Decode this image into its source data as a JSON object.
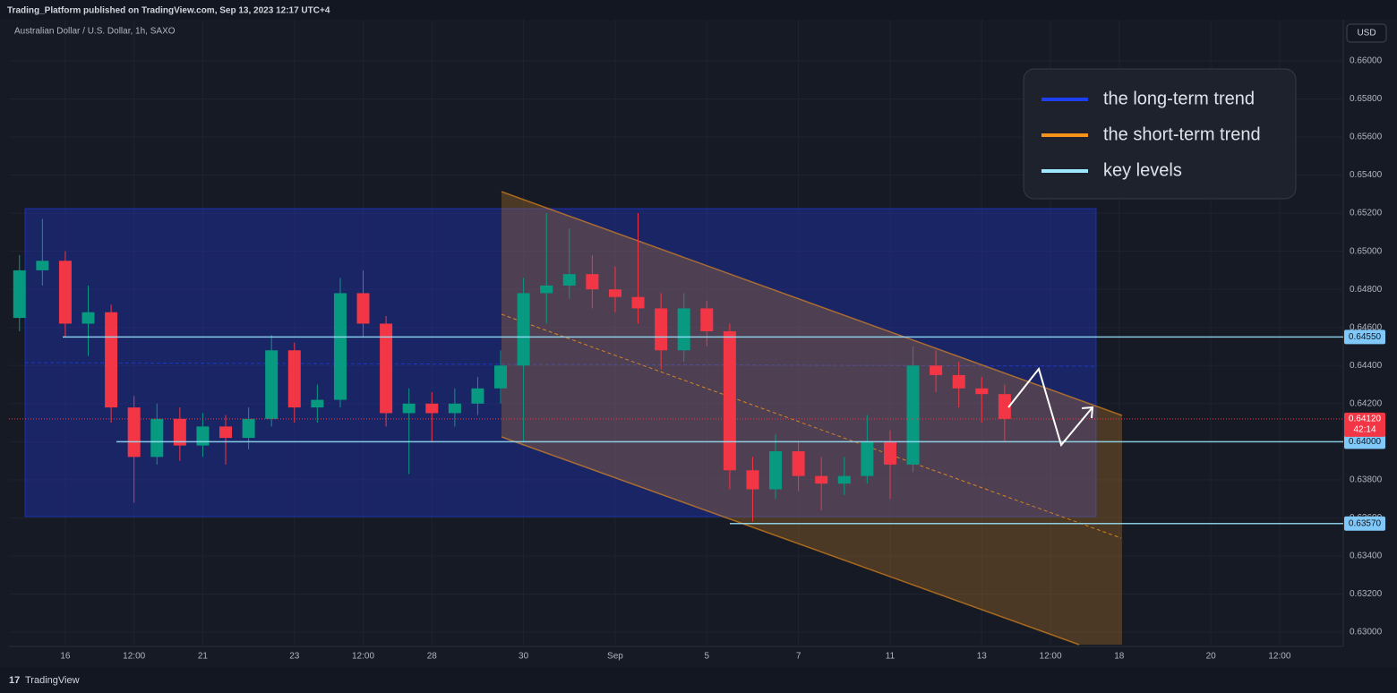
{
  "header": "Trading_Platform published on TradingView.com, Sep 13, 2023 12:17 UTC+4",
  "branding": "TradingView",
  "chart_data": {
    "type": "candlestick",
    "symbol": "Australian Dollar / U.S. Dollar, 1h, SAXO",
    "currency": "USD",
    "x": [
      0,
      0.5,
      1,
      1.5,
      2,
      2.5,
      3,
      3.5,
      4,
      4.5,
      5,
      5.5,
      6,
      6.5,
      7,
      7.5,
      8,
      8.5,
      9,
      9.5,
      10,
      10.5,
      11,
      11.5,
      12,
      12.5,
      13,
      13.5,
      14,
      14.5,
      15,
      15.5,
      16,
      16.5,
      17,
      17.5,
      18,
      18.5,
      19,
      19.5,
      20,
      20.5,
      21,
      21.5
    ],
    "open": [
      0.6465,
      0.649,
      0.6495,
      0.6462,
      0.6468,
      0.6418,
      0.6392,
      0.6412,
      0.6398,
      0.6408,
      0.6402,
      0.6412,
      0.6448,
      0.6418,
      0.6422,
      0.6478,
      0.6462,
      0.6415,
      0.642,
      0.6415,
      0.642,
      0.6428,
      0.644,
      0.6478,
      0.6482,
      0.6488,
      0.648,
      0.6476,
      0.647,
      0.6448,
      0.647,
      0.6458,
      0.6385,
      0.6375,
      0.6395,
      0.6382,
      0.6378,
      0.6382,
      0.64,
      0.6388,
      0.644,
      0.6435,
      0.6428,
      0.6425
    ],
    "high": [
      0.6498,
      0.6517,
      0.65,
      0.6482,
      0.6472,
      0.6424,
      0.642,
      0.6418,
      0.6415,
      0.6414,
      0.6418,
      0.6456,
      0.6452,
      0.643,
      0.6486,
      0.649,
      0.6466,
      0.6428,
      0.6426,
      0.6428,
      0.6434,
      0.6448,
      0.6486,
      0.652,
      0.6512,
      0.6498,
      0.6492,
      0.652,
      0.6478,
      0.6478,
      0.6474,
      0.6462,
      0.6392,
      0.6404,
      0.64,
      0.6392,
      0.6392,
      0.6414,
      0.6406,
      0.645,
      0.6448,
      0.6442,
      0.6434,
      0.643
    ],
    "low": [
      0.6458,
      0.6482,
      0.6455,
      0.6445,
      0.641,
      0.6368,
      0.6388,
      0.639,
      0.6392,
      0.6388,
      0.6396,
      0.6408,
      0.641,
      0.641,
      0.6418,
      0.6455,
      0.6408,
      0.6383,
      0.64,
      0.6408,
      0.6414,
      0.642,
      0.64,
      0.6462,
      0.6475,
      0.647,
      0.6468,
      0.6462,
      0.6438,
      0.6442,
      0.645,
      0.6375,
      0.6358,
      0.637,
      0.6374,
      0.6364,
      0.6372,
      0.6378,
      0.637,
      0.6384,
      0.6426,
      0.6418,
      0.641,
      0.64
    ],
    "close": [
      0.649,
      0.6495,
      0.6462,
      0.6468,
      0.6418,
      0.6392,
      0.6412,
      0.6398,
      0.6408,
      0.6402,
      0.6412,
      0.6448,
      0.6418,
      0.6422,
      0.6478,
      0.6462,
      0.6415,
      0.642,
      0.6415,
      0.642,
      0.6428,
      0.644,
      0.6478,
      0.6482,
      0.6488,
      0.648,
      0.6476,
      0.647,
      0.6448,
      0.647,
      0.6458,
      0.6385,
      0.6375,
      0.6395,
      0.6382,
      0.6378,
      0.6382,
      0.64,
      0.6388,
      0.644,
      0.6435,
      0.6428,
      0.6425,
      0.6412
    ],
    "up_color": "#089981",
    "down_color": "#f23645",
    "xlim": [
      -0.23,
      28.89
    ],
    "xticks": [
      {
        "value": 1,
        "label": "16"
      },
      {
        "value": 2.5,
        "label": "12:00"
      },
      {
        "value": 4,
        "label": "21"
      },
      {
        "value": 6,
        "label": "23"
      },
      {
        "value": 7.5,
        "label": "12:00"
      },
      {
        "value": 9,
        "label": "28"
      },
      {
        "value": 11,
        "label": "30"
      },
      {
        "value": 13,
        "label": "Sep"
      },
      {
        "value": 15,
        "label": "5"
      },
      {
        "value": 17,
        "label": "7"
      },
      {
        "value": 19,
        "label": "11"
      },
      {
        "value": 21,
        "label": "13"
      },
      {
        "value": 22.5,
        "label": "12:00"
      },
      {
        "value": 24,
        "label": "18"
      },
      {
        "value": 26,
        "label": "20"
      },
      {
        "value": 27.5,
        "label": "12:00"
      }
    ],
    "ylim": [
      0.62925,
      0.66216
    ],
    "yticks": [
      {
        "value": 0.63,
        "label": "0.63000"
      },
      {
        "value": 0.632,
        "label": "0.63200"
      },
      {
        "value": 0.634,
        "label": "0.63400"
      },
      {
        "value": 0.636,
        "label": "0.63600"
      },
      {
        "value": 0.638,
        "label": "0.63800"
      },
      {
        "value": 0.64,
        "label": "0.64000"
      },
      {
        "value": 0.642,
        "label": "0.64200"
      },
      {
        "value": 0.644,
        "label": "0.64400"
      },
      {
        "value": 0.646,
        "label": "0.64600"
      },
      {
        "value": 0.648,
        "label": "0.64800"
      },
      {
        "value": 0.65,
        "label": "0.65000"
      },
      {
        "value": 0.652,
        "label": "0.65200"
      },
      {
        "value": 0.654,
        "label": "0.65400"
      },
      {
        "value": 0.656,
        "label": "0.65600"
      },
      {
        "value": 0.658,
        "label": "0.65800"
      },
      {
        "value": 0.66,
        "label": "0.66000"
      }
    ],
    "grid": true,
    "key_levels": [
      {
        "value": 0.6455,
        "label": "0.64550"
      },
      {
        "value": 0.64,
        "label": "0.64000"
      },
      {
        "value": 0.6357,
        "label": "0.63570"
      }
    ],
    "last_price": {
      "value": 0.6412,
      "label": "0.64120"
    },
    "countdown": "42:14",
    "legend": [
      {
        "name": "the long-term trend",
        "color": "#1e3ff0"
      },
      {
        "name": "the short-term trend",
        "color": "#f7931a"
      },
      {
        "name": "key levels",
        "color": "#9be8ff"
      }
    ]
  }
}
